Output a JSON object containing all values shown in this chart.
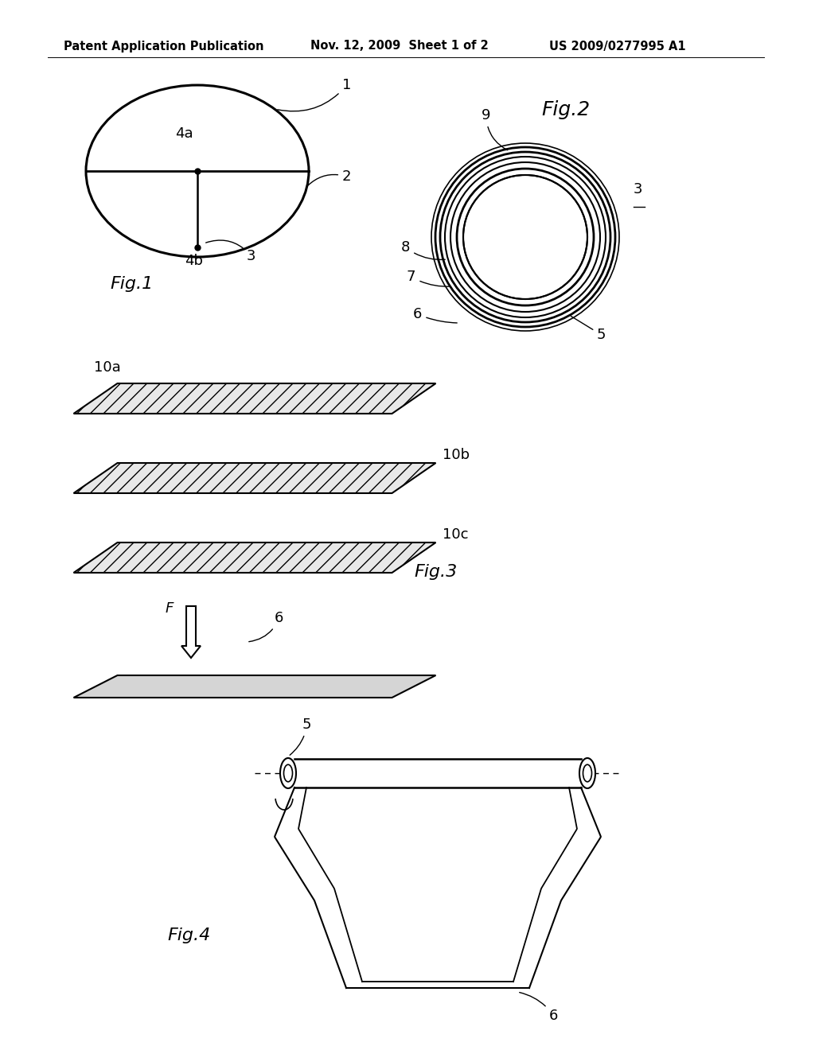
{
  "header_left": "Patent Application Publication",
  "header_mid": "Nov. 12, 2009  Sheet 1 of 2",
  "header_right": "US 2009/0277995 A1",
  "bg_color": "#ffffff",
  "line_color": "#000000",
  "fig1_label": "Fig.1",
  "fig2_label": "Fig.2",
  "fig3_label": "Fig.3",
  "fig4_label": "Fig.4"
}
